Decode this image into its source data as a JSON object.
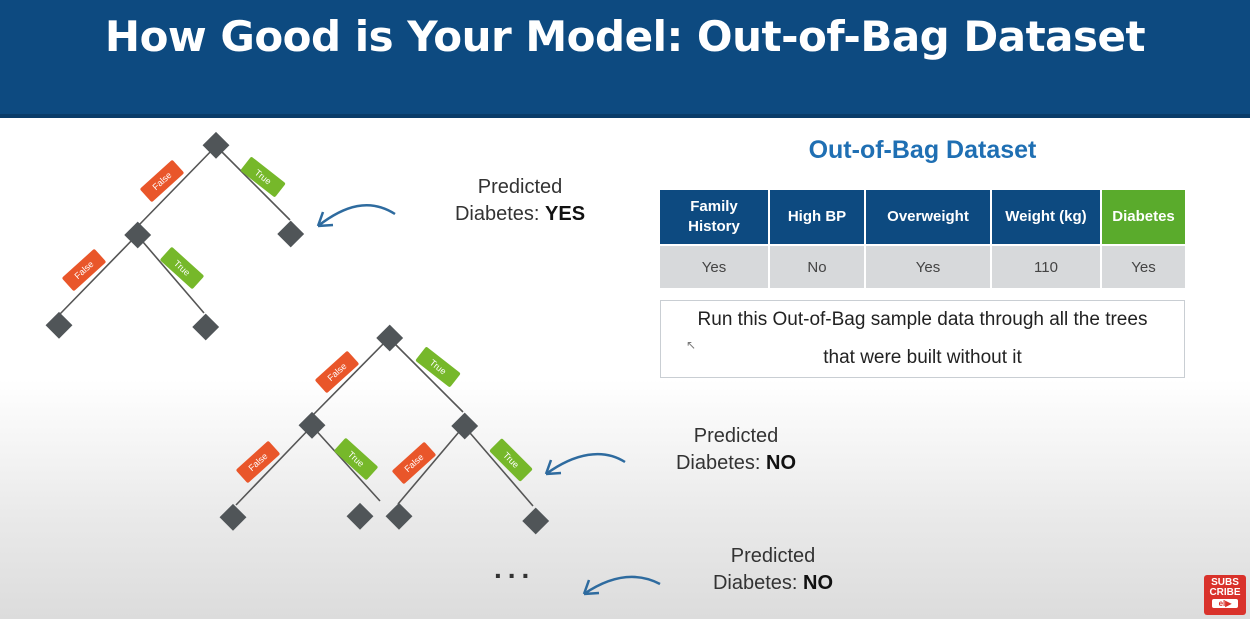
{
  "header": {
    "title": "How Good is Your Model: Out-of-Bag Dataset"
  },
  "tree_labels": {
    "false": "False",
    "true": "True"
  },
  "predictions": [
    {
      "label": "Predicted",
      "prefix": "Diabetes:",
      "value": "YES"
    },
    {
      "label": "Predicted",
      "prefix": "Diabetes:",
      "value": "NO"
    },
    {
      "label": "Predicted",
      "prefix": "Diabetes:",
      "value": "NO"
    }
  ],
  "ellipsis": "...",
  "oob": {
    "title": "Out-of-Bag Dataset",
    "columns": [
      "Family History",
      "High BP",
      "Overweight",
      "Weight (kg)",
      "Diabetes"
    ],
    "row": [
      "Yes",
      "No",
      "Yes",
      "110",
      "Yes"
    ],
    "note_line1": "Run this Out-of-Bag sample data through all the trees",
    "note_line2": "that were built without it"
  },
  "subscribe": {
    "text1": "SUBS",
    "text2": "CRIBE",
    "badge": "el▶"
  },
  "colors": {
    "header": "#0d4a80",
    "false_label": "#e9562a",
    "true_label": "#76b82a",
    "accent": "#1f6fb3"
  }
}
